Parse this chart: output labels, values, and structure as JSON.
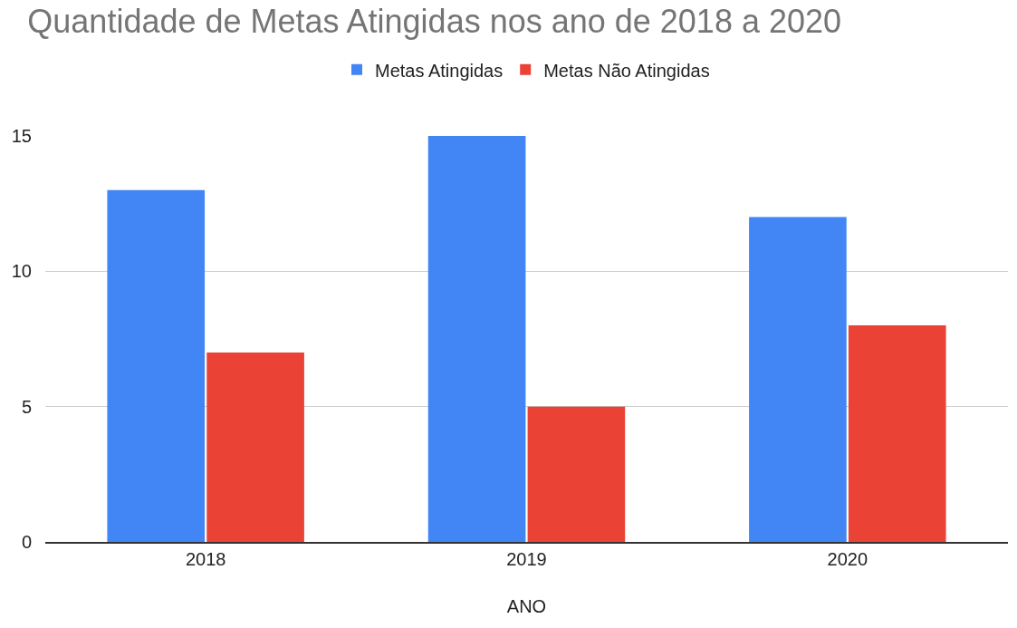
{
  "chart_data": {
    "type": "bar",
    "title": "Quantidade de Metas Atingidas nos ano de 2018 a 2020",
    "xlabel": "ANO",
    "categories": [
      "2018",
      "2019",
      "2020"
    ],
    "series": [
      {
        "name": "Metas Atingidas",
        "color": "#4285f4",
        "values": [
          13,
          15,
          12
        ]
      },
      {
        "name": "Metas Não Atingidas",
        "color": "#ea4335",
        "values": [
          7,
          5,
          8
        ]
      }
    ],
    "ylim": [
      0,
      15
    ],
    "yticks": [
      0,
      5,
      10,
      15
    ],
    "grid": "y",
    "legend": "top"
  }
}
